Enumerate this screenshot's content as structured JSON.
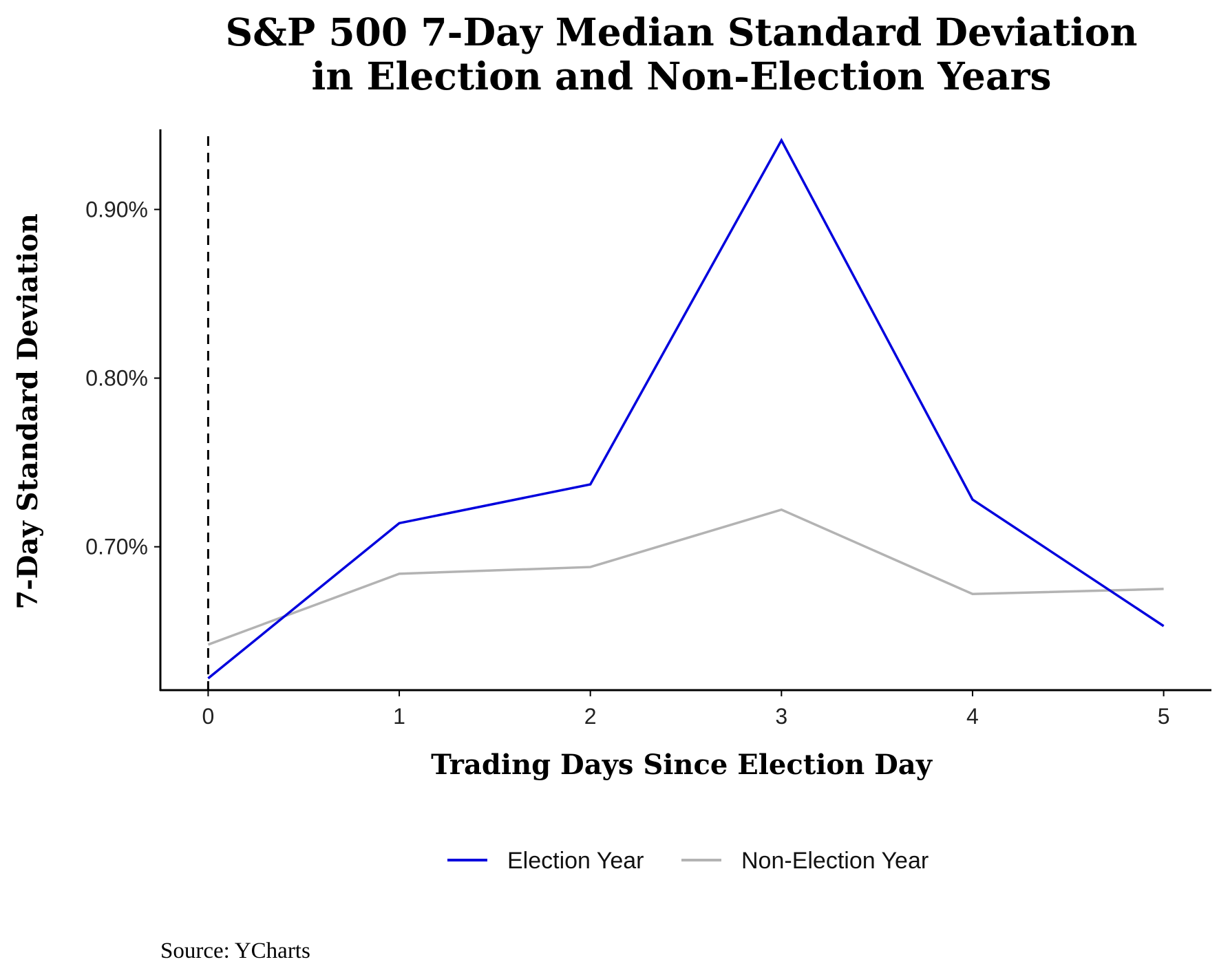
{
  "chart_data": {
    "type": "line",
    "title": [
      "S&P 500 7-Day Median Standard Deviation",
      "in Election and Non-Election Years"
    ],
    "xlabel": "Trading Days Since Election Day",
    "ylabel": "7-Day Standard Deviation",
    "x": [
      0,
      1,
      2,
      3,
      4,
      5
    ],
    "xlim": [
      -0.25,
      5.25
    ],
    "ylim": [
      0.615,
      0.9475
    ],
    "x_ticks": [
      0,
      1,
      2,
      3,
      4,
      5
    ],
    "y_ticks": [
      0.7,
      0.8,
      0.9
    ],
    "y_tick_labels": [
      "0.70%",
      "0.80%",
      "0.90%"
    ],
    "reference_line": {
      "x": 0,
      "style": "dashed",
      "color": "#000000"
    },
    "series": [
      {
        "name": "Election Year",
        "color": "#0000dd",
        "values": [
          0.622,
          0.714,
          0.737,
          0.941,
          0.728,
          0.653
        ]
      },
      {
        "name": "Non-Election Year",
        "color": "#b3b3b3",
        "values": [
          0.642,
          0.684,
          0.688,
          0.722,
          0.672,
          0.675
        ]
      }
    ],
    "grid": false,
    "legend_position": "bottom",
    "source": "Source:  YCharts"
  }
}
